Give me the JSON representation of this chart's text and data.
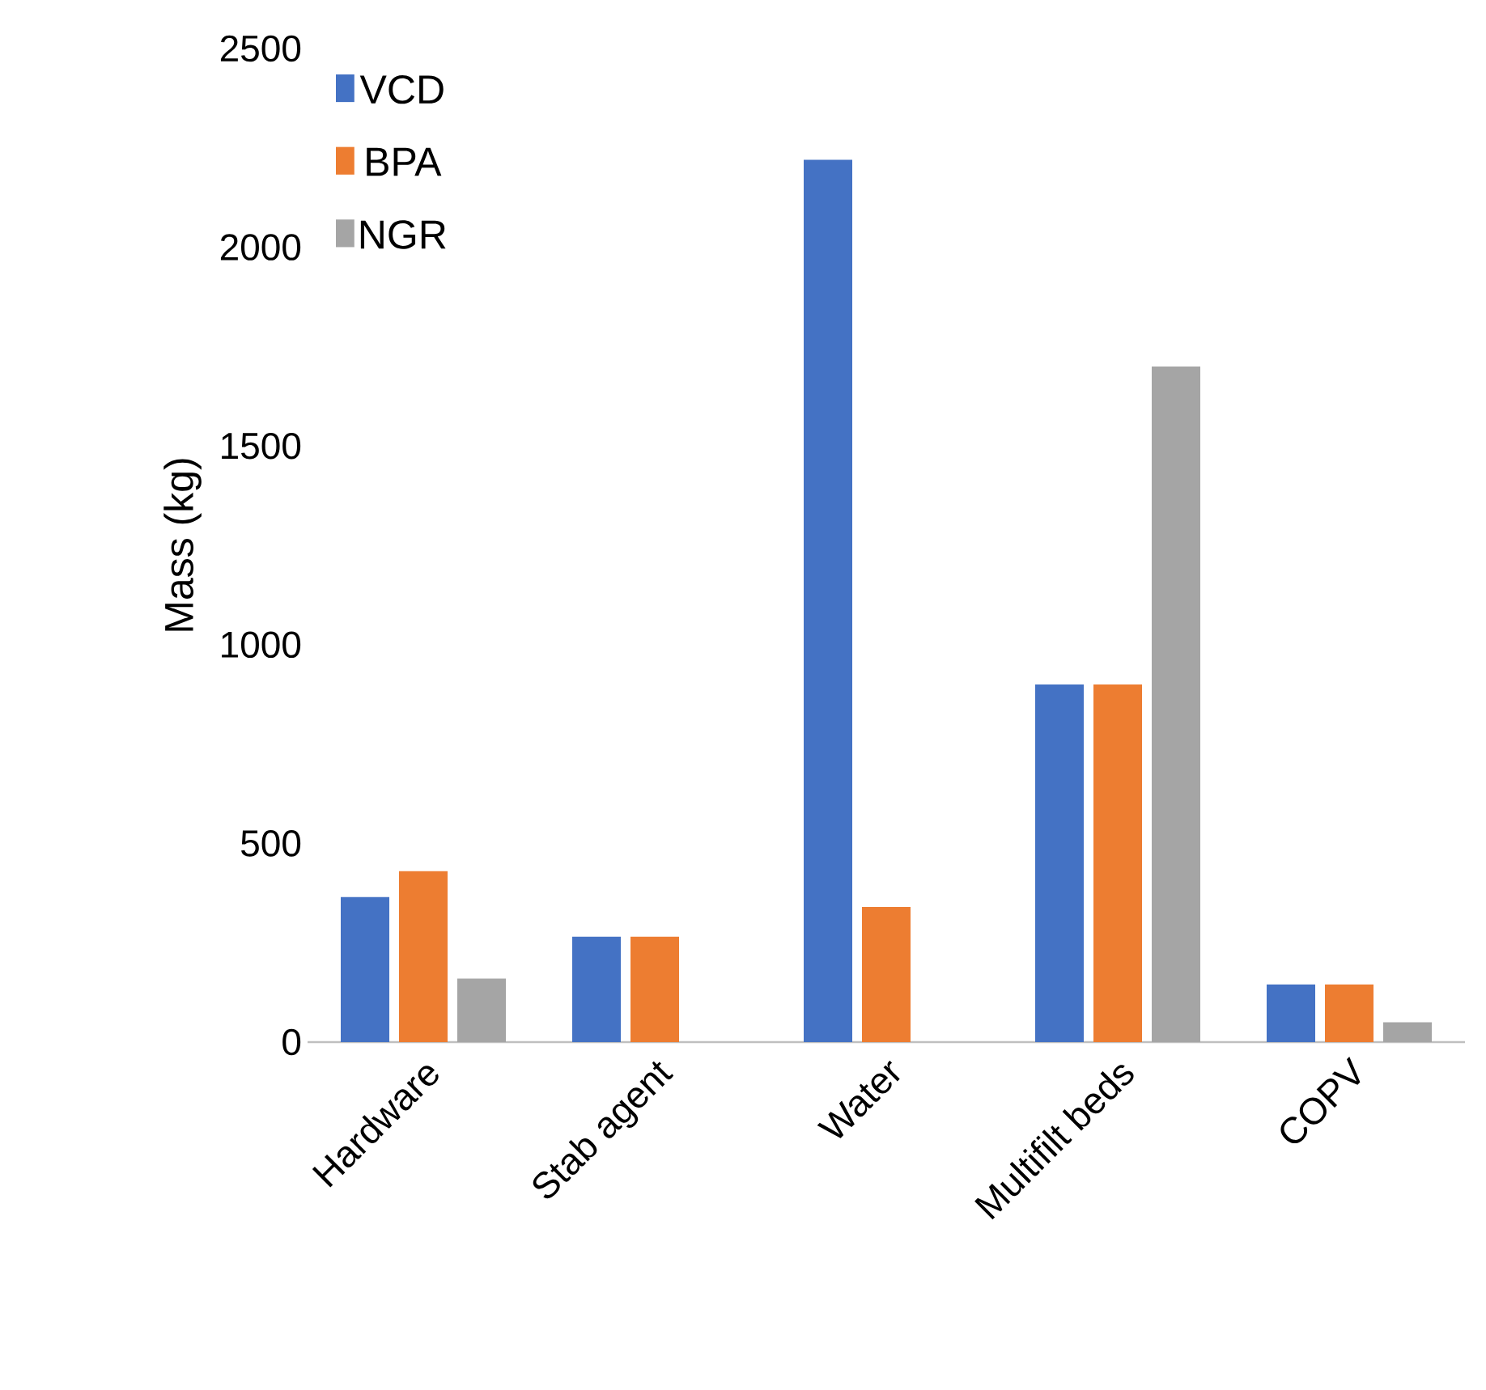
{
  "chart_data": {
    "type": "bar",
    "ylabel": "Mass (kg)",
    "categories": [
      "Hardware",
      "Stab agent",
      "Water",
      "Multifilt beds",
      "COPV"
    ],
    "series": [
      {
        "name": "VCD",
        "color": "#4472c4",
        "values": [
          365,
          265,
          2220,
          900,
          145
        ]
      },
      {
        "name": "BPA",
        "color": "#ed7d31",
        "values": [
          430,
          265,
          340,
          900,
          145
        ]
      },
      {
        "name": "NGR",
        "color": "#a5a5a5",
        "values": [
          160,
          null,
          null,
          1700,
          50
        ]
      }
    ],
    "ylim": [
      0,
      2500
    ],
    "yticks": [
      0,
      500,
      1000,
      1500,
      2000,
      2500
    ],
    "grid": false,
    "legend": "top left"
  }
}
